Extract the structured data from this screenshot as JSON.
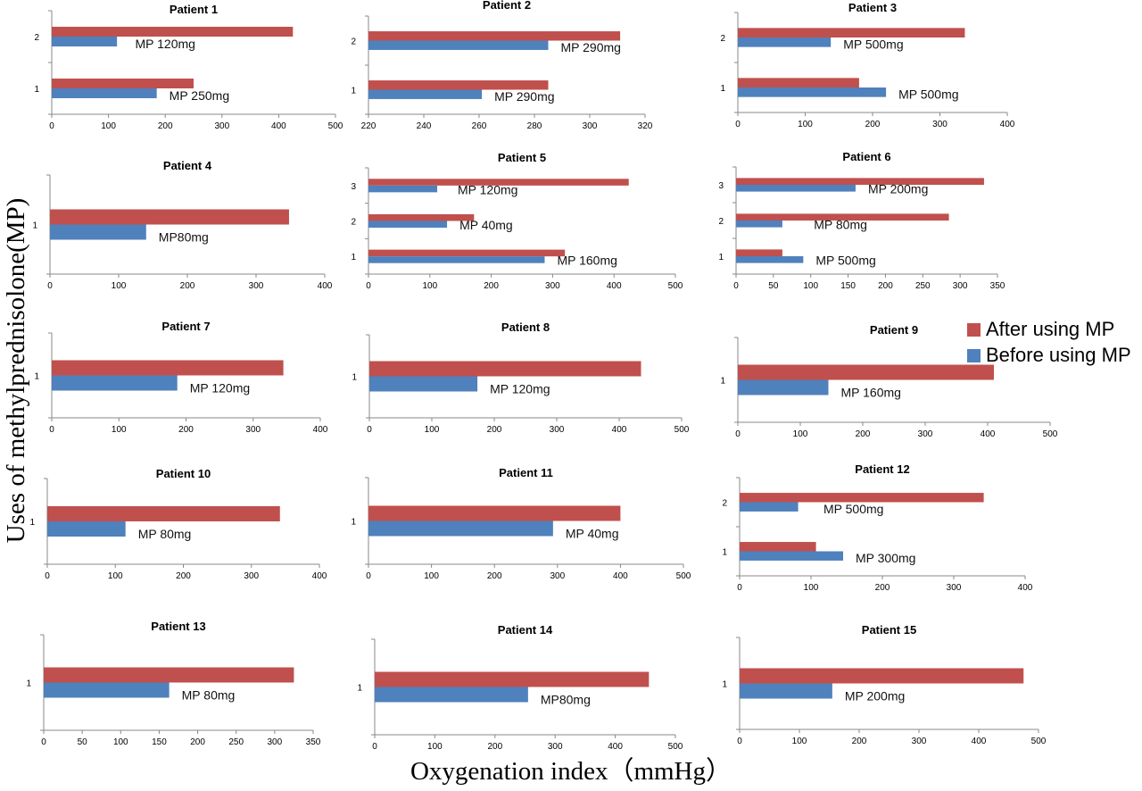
{
  "figure": {
    "ylabel": "Uses of methylprednisolone(MP)",
    "xlabel": "Oxygenation  index（mmHg）",
    "legend": [
      {
        "label": "After using MP",
        "color": "#c0504d"
      },
      {
        "label": "Before using MP",
        "color": "#4f81bd"
      }
    ]
  },
  "chart_data": [
    {
      "type": "bar",
      "title": "Patient  1",
      "categories": [
        "1",
        "2"
      ],
      "series": [
        {
          "name": "Before using MP",
          "values": [
            185,
            115
          ]
        },
        {
          "name": "After using MP",
          "values": [
            250,
            425
          ]
        }
      ],
      "annotations": [
        "MP 250mg",
        "MP 120mg"
      ],
      "xlim": [
        0,
        500
      ],
      "xticks": [
        0,
        100,
        200,
        300,
        400,
        500
      ]
    },
    {
      "type": "bar",
      "title": "Patient 2",
      "categories": [
        "1",
        "2"
      ],
      "series": [
        {
          "name": "Before using MP",
          "values": [
            261,
            285
          ]
        },
        {
          "name": "After using MP",
          "values": [
            285,
            311
          ]
        }
      ],
      "annotations": [
        "MP 290mg",
        "MP 290mg"
      ],
      "xlim": [
        220,
        320
      ],
      "xticks": [
        220,
        240,
        260,
        280,
        300,
        320
      ]
    },
    {
      "type": "bar",
      "title": "Patient 3",
      "categories": [
        "1",
        "2"
      ],
      "series": [
        {
          "name": "Before using MP",
          "values": [
            220,
            138
          ]
        },
        {
          "name": "After using MP",
          "values": [
            180,
            337
          ]
        }
      ],
      "annotations": [
        "MP 500mg",
        "MP 500mg"
      ],
      "xlim": [
        0,
        400
      ],
      "xticks": [
        0,
        100,
        200,
        300,
        400
      ]
    },
    {
      "type": "bar",
      "title": "Patient 4",
      "categories": [
        "1"
      ],
      "series": [
        {
          "name": "Before using MP",
          "values": [
            140
          ]
        },
        {
          "name": "After using MP",
          "values": [
            348
          ]
        }
      ],
      "annotations": [
        "MP80mg"
      ],
      "xlim": [
        0,
        400
      ],
      "xticks": [
        0,
        100,
        200,
        300,
        400
      ]
    },
    {
      "type": "bar",
      "title": "Patient 5",
      "categories": [
        "1",
        "2",
        "3"
      ],
      "series": [
        {
          "name": "Before using MP",
          "values": [
            287,
            128,
            112
          ]
        },
        {
          "name": "After using MP",
          "values": [
            320,
            172,
            424
          ]
        }
      ],
      "annotations": [
        "MP 160mg",
        "MP 40mg",
        "MP 120mg"
      ],
      "xlim": [
        0,
        500
      ],
      "xticks": [
        0,
        100,
        200,
        300,
        400,
        500
      ]
    },
    {
      "type": "bar",
      "title": "Patient 6",
      "categories": [
        "1",
        "2",
        "3"
      ],
      "series": [
        {
          "name": "Before using MP",
          "values": [
            90,
            62,
            160
          ]
        },
        {
          "name": "After using MP",
          "values": [
            62,
            285,
            332
          ]
        }
      ],
      "annotations": [
        "MP 500mg",
        "MP 80mg",
        "MP 200mg"
      ],
      "xlim": [
        0,
        350
      ],
      "xticks": [
        0,
        50,
        100,
        150,
        200,
        250,
        300,
        350
      ]
    },
    {
      "type": "bar",
      "title": "Patient 7",
      "categories": [
        "1"
      ],
      "series": [
        {
          "name": "Before using MP",
          "values": [
            187
          ]
        },
        {
          "name": "After using MP",
          "values": [
            345
          ]
        }
      ],
      "annotations": [
        "MP 120mg"
      ],
      "xlim": [
        0,
        400
      ],
      "xticks": [
        0,
        100,
        200,
        300,
        400
      ]
    },
    {
      "type": "bar",
      "title": "Patient 8",
      "categories": [
        "1"
      ],
      "series": [
        {
          "name": "Before using MP",
          "values": [
            173
          ]
        },
        {
          "name": "After using MP",
          "values": [
            435
          ]
        }
      ],
      "annotations": [
        "MP 120mg"
      ],
      "xlim": [
        0,
        500
      ],
      "xticks": [
        0,
        100,
        200,
        300,
        400,
        500
      ]
    },
    {
      "type": "bar",
      "title": "Patient 9",
      "categories": [
        "1"
      ],
      "series": [
        {
          "name": "Before using MP",
          "values": [
            145
          ]
        },
        {
          "name": "After using MP",
          "values": [
            410
          ]
        }
      ],
      "annotations": [
        "MP 160mg"
      ],
      "xlim": [
        0,
        500
      ],
      "xticks": [
        0,
        100,
        200,
        300,
        400,
        500
      ]
    },
    {
      "type": "bar",
      "title": "Patient 10",
      "categories": [
        "1"
      ],
      "series": [
        {
          "name": "Before using MP",
          "values": [
            115
          ]
        },
        {
          "name": "After using MP",
          "values": [
            342
          ]
        }
      ],
      "annotations": [
        "MP 80mg"
      ],
      "xlim": [
        0,
        400
      ],
      "xticks": [
        0,
        100,
        200,
        300,
        400
      ]
    },
    {
      "type": "bar",
      "title": "Patient 11",
      "categories": [
        "1"
      ],
      "series": [
        {
          "name": "Before using MP",
          "values": [
            293
          ]
        },
        {
          "name": "After using MP",
          "values": [
            400
          ]
        }
      ],
      "annotations": [
        "MP 40mg"
      ],
      "xlim": [
        0,
        500
      ],
      "xticks": [
        0,
        100,
        200,
        300,
        400,
        500
      ]
    },
    {
      "type": "bar",
      "title": "Patient 12",
      "categories": [
        "1",
        "2"
      ],
      "series": [
        {
          "name": "Before using MP",
          "values": [
            145,
            82
          ]
        },
        {
          "name": "After using MP",
          "values": [
            107,
            342
          ]
        }
      ],
      "annotations": [
        "MP 300mg",
        "MP 500mg"
      ],
      "xlim": [
        0,
        400
      ],
      "xticks": [
        0,
        100,
        200,
        300,
        400
      ]
    },
    {
      "type": "bar",
      "title": "Patient 13",
      "categories": [
        "1"
      ],
      "series": [
        {
          "name": "Before using MP",
          "values": [
            163
          ]
        },
        {
          "name": "After using MP",
          "values": [
            325
          ]
        }
      ],
      "annotations": [
        "MP 80mg"
      ],
      "xlim": [
        0,
        350
      ],
      "xticks": [
        0,
        50,
        100,
        150,
        200,
        250,
        300,
        350
      ]
    },
    {
      "type": "bar",
      "title": "Patient 14",
      "categories": [
        "1"
      ],
      "series": [
        {
          "name": "Before using MP",
          "values": [
            255
          ]
        },
        {
          "name": "After using MP",
          "values": [
            456
          ]
        }
      ],
      "annotations": [
        "MP80mg"
      ],
      "xlim": [
        0,
        500
      ],
      "xticks": [
        0,
        100,
        200,
        300,
        400,
        500
      ]
    },
    {
      "type": "bar",
      "title": "Patient 15",
      "categories": [
        "1"
      ],
      "series": [
        {
          "name": "Before using MP",
          "values": [
            155
          ]
        },
        {
          "name": "After using MP",
          "values": [
            475
          ]
        }
      ],
      "annotations": [
        "MP 200mg"
      ],
      "xlim": [
        0,
        500
      ],
      "xticks": [
        0,
        100,
        200,
        300,
        400,
        500
      ]
    }
  ]
}
